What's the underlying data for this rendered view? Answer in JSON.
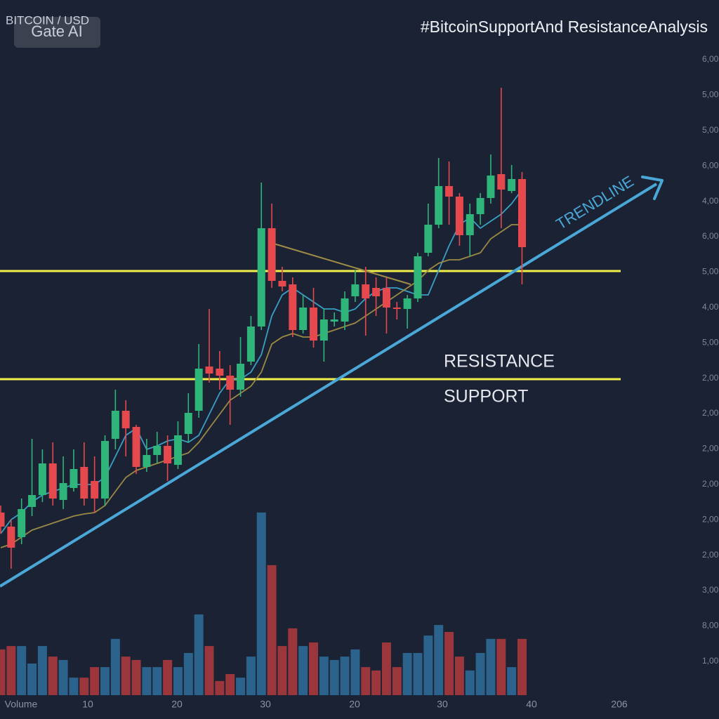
{
  "chart_data": {
    "type": "candlestick",
    "title": "BITCOIN / USD",
    "watermark": "Gate AI",
    "hashtag": "#BitcoinSupportAnd ResistanceAnalysis",
    "ylim": [
      0,
      100
    ],
    "y2lim": [
      0,
      100
    ],
    "y_axis_labels": [
      "6,00",
      "5,00",
      "5,00",
      "6,00",
      "4,00",
      "6,00",
      "5,00",
      "4,00",
      "5,00",
      "2,00",
      "2,00",
      "2,00",
      "2,00",
      "2,00",
      "2,00",
      "3,00",
      "8,00",
      "1,00"
    ],
    "x_axis_labels": [
      "Volume",
      "10",
      "20",
      "30",
      "20",
      "30",
      "40",
      "206"
    ],
    "up_color": "#2fb47a",
    "down_color": "#e5484d",
    "candles": [
      {
        "open": 27,
        "close": 25,
        "high": 28,
        "low": 24
      },
      {
        "open": 25,
        "close": 22,
        "high": 26,
        "low": 19
      },
      {
        "open": 23.5,
        "close": 27.5,
        "high": 29,
        "low": 22.5
      },
      {
        "open": 27.8,
        "close": 29.5,
        "high": 37.5,
        "low": 26.5
      },
      {
        "open": 29.5,
        "close": 34,
        "high": 36,
        "low": 28.5
      },
      {
        "open": 34,
        "close": 29,
        "high": 37,
        "low": 28
      },
      {
        "open": 28.8,
        "close": 31.2,
        "high": 35,
        "low": 27.5
      },
      {
        "open": 30.5,
        "close": 33.2,
        "high": 36,
        "low": 30
      },
      {
        "open": 33.5,
        "close": 29,
        "high": 37,
        "low": 28
      },
      {
        "open": 31.5,
        "close": 29,
        "high": 35,
        "low": 27
      },
      {
        "open": 29,
        "close": 37.2,
        "high": 38,
        "low": 28
      },
      {
        "open": 37.5,
        "close": 41.5,
        "high": 44.5,
        "low": 36
      },
      {
        "open": 41.5,
        "close": 39,
        "high": 43,
        "low": 35
      },
      {
        "open": 39.2,
        "close": 33.5,
        "high": 39.5,
        "low": 32.5
      },
      {
        "open": 33.5,
        "close": 35.2,
        "high": 37.5,
        "low": 32.8
      },
      {
        "open": 35.2,
        "close": 36.5,
        "high": 38.5,
        "low": 34
      },
      {
        "open": 36.5,
        "close": 34,
        "high": 38,
        "low": 31.5
      },
      {
        "open": 33.8,
        "close": 38,
        "high": 40,
        "low": 33.2
      },
      {
        "open": 38.2,
        "close": 41.2,
        "high": 44,
        "low": 37
      },
      {
        "open": 41.5,
        "close": 47.5,
        "high": 51,
        "low": 40.5
      },
      {
        "open": 47.8,
        "close": 46.8,
        "high": 56,
        "low": 45.5
      },
      {
        "open": 47.5,
        "close": 46.5,
        "high": 50,
        "low": 44.5
      },
      {
        "open": 46.5,
        "close": 44.5,
        "high": 48,
        "low": 39.5
      },
      {
        "open": 44.5,
        "close": 48.2,
        "high": 52,
        "low": 43.5
      },
      {
        "open": 48.5,
        "close": 53.5,
        "high": 55,
        "low": 48
      },
      {
        "open": 53.5,
        "close": 67.5,
        "high": 74,
        "low": 53
      },
      {
        "open": 67.5,
        "close": 60,
        "high": 71,
        "low": 59
      },
      {
        "open": 60,
        "close": 59.2,
        "high": 62,
        "low": 58.5
      },
      {
        "open": 59.5,
        "close": 53,
        "high": 60.5,
        "low": 52
      },
      {
        "open": 53,
        "close": 56.2,
        "high": 58,
        "low": 52.5
      },
      {
        "open": 56.2,
        "close": 51.5,
        "high": 59,
        "low": 50.5
      },
      {
        "open": 51.5,
        "close": 54.5,
        "high": 56,
        "low": 48.5
      },
      {
        "open": 54.2,
        "close": 54.5,
        "high": 55.5,
        "low": 53.5
      },
      {
        "open": 54.2,
        "close": 57.5,
        "high": 58.5,
        "low": 53
      },
      {
        "open": 57.8,
        "close": 59.5,
        "high": 61.5,
        "low": 57
      },
      {
        "open": 59.5,
        "close": 57.5,
        "high": 62,
        "low": 52.2
      },
      {
        "open": 59,
        "close": 57.8,
        "high": 60.5,
        "low": 55
      },
      {
        "open": 59,
        "close": 56.2,
        "high": 60.5,
        "low": 52.5
      },
      {
        "open": 56.2,
        "close": 56,
        "high": 57,
        "low": 54.5
      },
      {
        "open": 56,
        "close": 57.5,
        "high": 58,
        "low": 53.2
      },
      {
        "open": 57.5,
        "close": 63.5,
        "high": 64,
        "low": 57
      },
      {
        "open": 64,
        "close": 68,
        "high": 71,
        "low": 63.5
      },
      {
        "open": 68,
        "close": 73.5,
        "high": 77.5,
        "low": 67.5
      },
      {
        "open": 73.5,
        "close": 72,
        "high": 77,
        "low": 68
      },
      {
        "open": 72,
        "close": 66.5,
        "high": 72.5,
        "low": 65
      },
      {
        "open": 66.5,
        "close": 69.5,
        "high": 71,
        "low": 63.5
      },
      {
        "open": 69.5,
        "close": 71.8,
        "high": 72.5,
        "low": 68
      },
      {
        "open": 71.8,
        "close": 75,
        "high": 78,
        "low": 71
      },
      {
        "open": 75.2,
        "close": 73,
        "high": 87.5,
        "low": 67.5
      },
      {
        "open": 72.8,
        "close": 74.5,
        "high": 76.5,
        "low": 72.5
      },
      {
        "open": 74.5,
        "close": 64.8,
        "high": 75.5,
        "low": 59.5
      }
    ],
    "volume": {
      "up_color": "#2e6f9e",
      "down_color": "#b23a3e",
      "axis": "y2",
      "values": [
        21.7,
        23.3,
        23.3,
        15,
        23.3,
        18.3,
        16.7,
        8.3,
        8.3,
        13.3,
        13.3,
        26.7,
        18.3,
        16.7,
        13.3,
        13.3,
        16.7,
        13.3,
        20,
        38.3,
        23.3,
        6.7,
        10,
        8.3,
        18.3,
        86.7,
        61.7,
        23.3,
        31.7,
        23.3,
        25,
        18.3,
        16.7,
        18.3,
        21.7,
        13.3,
        11.7,
        25,
        13.3,
        20,
        20,
        28.3,
        33.3,
        30,
        18.3,
        11.7,
        20,
        26.7,
        26.7,
        13.3,
        26.7
      ]
    },
    "moving_averages": [
      {
        "color": "#3a9fc4",
        "values": [
          24,
          26,
          27,
          28.5,
          29.5,
          30,
          30.5,
          31,
          31,
          31,
          32,
          35,
          38,
          39,
          36,
          36.5,
          37.2,
          37.5,
          37,
          38,
          41,
          44,
          46,
          46,
          47,
          49.5,
          55,
          58,
          59,
          58,
          57,
          56,
          56,
          55.5,
          56,
          57.5,
          58.5,
          59,
          59,
          58.5,
          58,
          58,
          61.5,
          65,
          68,
          69,
          67.5,
          68.5,
          69.5,
          71,
          73
        ]
      },
      {
        "color": "#9a8a45",
        "values": [
          22,
          22.5,
          23.5,
          24.5,
          25,
          25.5,
          26,
          26.5,
          26.8,
          27,
          28,
          30,
          32,
          33,
          33.5,
          34,
          34.5,
          35,
          35.5,
          37,
          39,
          41,
          43,
          44,
          45,
          47,
          51,
          52,
          52.5,
          52,
          52,
          52.5,
          53,
          53.5,
          54,
          55,
          56,
          57,
          58,
          59,
          60,
          61.5,
          62.5,
          63,
          63,
          63.5,
          64,
          66,
          67,
          68,
          68
        ]
      }
    ],
    "levels": [
      {
        "value": 61.4,
        "color": "#f0f04a"
      },
      {
        "value": 46,
        "color": "#f0f04a"
      }
    ],
    "annotations": [
      "RESISTANCE",
      "SUPPORT"
    ],
    "trendline_label": "TRENDLINE",
    "grid": true
  }
}
